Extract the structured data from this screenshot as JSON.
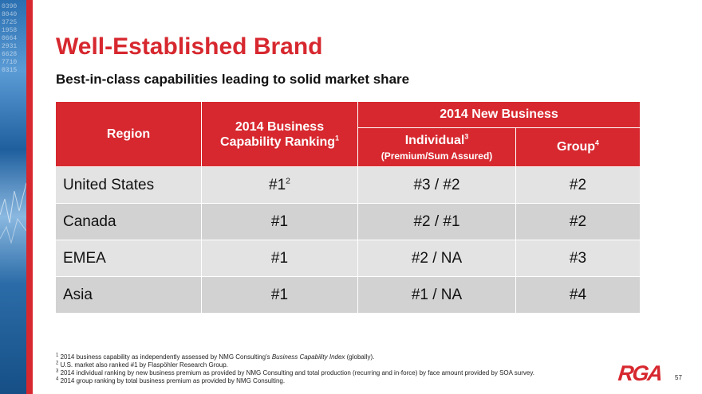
{
  "slide": {
    "title": "Well-Established Brand",
    "subtitle": "Best-in-class capabilities leading to solid market share",
    "page_number": "57",
    "logo_text": "RGA"
  },
  "colors": {
    "accent": "#d7282f",
    "row_light": "#e3e3e3",
    "row_dark": "#d2d2d2"
  },
  "table": {
    "headers": {
      "region": "Region",
      "capability_line1": "2014 Business",
      "capability_line2": "Capability Ranking",
      "capability_sup": "1",
      "new_business": "2014 New Business",
      "individual": "Individual",
      "individual_sup": "3",
      "individual_sub": "(Premium/Sum Assured)",
      "group": "Group",
      "group_sup": "4"
    },
    "rows": [
      {
        "region": "United States",
        "capability": "#1",
        "capability_sup": "2",
        "individual": "#3 / #2",
        "group": "#2"
      },
      {
        "region": "Canada",
        "capability": "#1",
        "individual": "#2 / #1",
        "group": "#2"
      },
      {
        "region": "EMEA",
        "capability": "#1",
        "individual": "#2 / NA",
        "group": "#3"
      },
      {
        "region": "Asia",
        "capability": "#1",
        "individual": "#1 / NA",
        "group": "#4"
      }
    ]
  },
  "footnotes": [
    {
      "num": "1",
      "text_before": "2014 business capability as independently assessed by NMG Consulting's ",
      "italic": "Business Capability Index",
      "text_after": " (globally)."
    },
    {
      "num": "2",
      "text": "U.S. market also ranked #1 by Flaspöhler Research Group."
    },
    {
      "num": "3",
      "text": "2014 individual ranking by new business premium as provided by NMG Consulting and total production (recurring and in-force) by face amount provided by SOA survey."
    },
    {
      "num": "4",
      "text": "2014 group ranking by total business premium as provided by NMG Consulting."
    }
  ]
}
